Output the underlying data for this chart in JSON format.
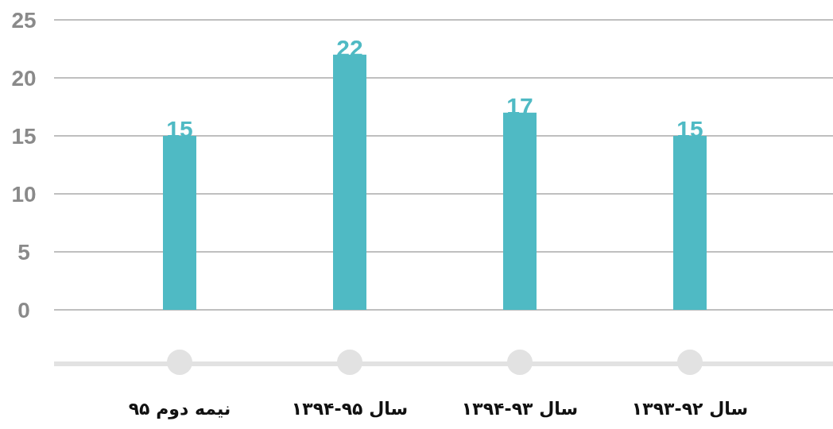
{
  "chart_data": {
    "type": "bar",
    "categories": [
      "نیمه دوم ۹۵",
      "سال ۹۵-۱۳۹۴",
      "سال ۹۳-۱۳۹۴",
      "سال ۹۲-۱۳۹۳"
    ],
    "values": [
      15,
      22,
      17,
      15
    ],
    "color": "#4fbac4",
    "ylim": [
      0,
      25
    ],
    "yticks": [
      0,
      5,
      10,
      15,
      20,
      25
    ],
    "grid": "y",
    "data_labels": true
  }
}
